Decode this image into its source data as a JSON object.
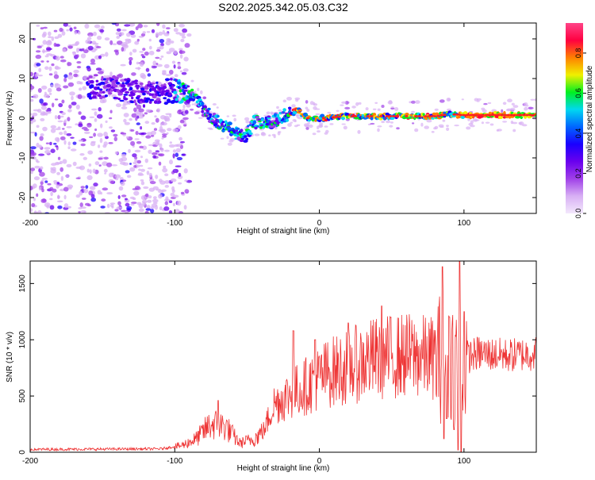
{
  "title": "S202.2025.342.05.03.C32",
  "colors": {
    "snr_line": "#ee3333",
    "axis": "#000000",
    "background": "#ffffff"
  },
  "chart_data": [
    {
      "type": "heatmap",
      "xlabel": "Height of straight line (km)",
      "ylabel": "Frequency (Hz)",
      "xlim": [
        -200,
        150
      ],
      "ylim": [
        -24,
        24
      ],
      "xticks": [
        -200,
        -100,
        0,
        100
      ],
      "xtick_labels": [
        "-200",
        "-100",
        "0",
        "100"
      ],
      "yticks": [
        -20,
        -10,
        0,
        10,
        20
      ],
      "ytick_labels": [
        "-20",
        "-10",
        "0",
        "10",
        "20"
      ],
      "colorbar": {
        "label": "Normalized spectral amplitude",
        "range": [
          0,
          0.95
        ],
        "ticks": [
          0.0,
          0.2,
          0.4,
          0.6,
          0.8
        ],
        "tick_labels": [
          "0.0",
          "0.2",
          "0.4",
          "0.6",
          "0.8"
        ],
        "stops": [
          "#f3e8fc",
          "#d8b0f4",
          "#a040e8",
          "#6a00ee",
          "#1a00ff",
          "#0066ff",
          "#00d8f0",
          "#00f020",
          "#f0f000",
          "#ff8000",
          "#ff0040",
          "#ff4488"
        ]
      },
      "ridge": [
        {
          "x": -150,
          "y": 8
        },
        {
          "x": -120,
          "y": 6
        },
        {
          "x": -100,
          "y": 7
        },
        {
          "x": -88,
          "y": 6
        },
        {
          "x": -80,
          "y": 2
        },
        {
          "x": -70,
          "y": -1
        },
        {
          "x": -60,
          "y": -3
        },
        {
          "x": -52,
          "y": -5
        },
        {
          "x": -45,
          "y": -1
        },
        {
          "x": -40,
          "y": -1
        },
        {
          "x": -32,
          "y": -1
        },
        {
          "x": -25,
          "y": 0.5
        },
        {
          "x": -15,
          "y": 2
        },
        {
          "x": -8,
          "y": 0
        },
        {
          "x": 0,
          "y": 0
        },
        {
          "x": 20,
          "y": 0.5
        },
        {
          "x": 50,
          "y": 0.5
        },
        {
          "x": 80,
          "y": 0.5
        },
        {
          "x": 90,
          "y": 1
        },
        {
          "x": 100,
          "y": 0.8
        },
        {
          "x": 150,
          "y": 0.8
        }
      ]
    },
    {
      "type": "line",
      "xlabel": "Height of straight line (km)",
      "ylabel": "SNR (10 * v/v)",
      "xlim": [
        -200,
        150
      ],
      "ylim": [
        0,
        1700
      ],
      "xticks": [
        -200,
        -100,
        0,
        100
      ],
      "xtick_labels": [
        "-200",
        "-100",
        "0",
        "100"
      ],
      "yticks": [
        0,
        500,
        1000,
        1500
      ],
      "ytick_labels": [
        "0",
        "500",
        "1000",
        "1500"
      ],
      "series": [
        {
          "name": "SNR",
          "envelope": [
            {
              "x": -200,
              "y": 25
            },
            {
              "x": -110,
              "y": 30
            },
            {
              "x": -95,
              "y": 60
            },
            {
              "x": -85,
              "y": 120
            },
            {
              "x": -75,
              "y": 250
            },
            {
              "x": -65,
              "y": 230
            },
            {
              "x": -55,
              "y": 80
            },
            {
              "x": -45,
              "y": 120
            },
            {
              "x": -38,
              "y": 200
            },
            {
              "x": -32,
              "y": 420
            },
            {
              "x": -25,
              "y": 480
            },
            {
              "x": -15,
              "y": 550
            },
            {
              "x": -5,
              "y": 620
            },
            {
              "x": 5,
              "y": 700
            },
            {
              "x": 20,
              "y": 760
            },
            {
              "x": 40,
              "y": 840
            },
            {
              "x": 60,
              "y": 860
            },
            {
              "x": 80,
              "y": 840
            },
            {
              "x": 95,
              "y": 820
            },
            {
              "x": 110,
              "y": 880
            },
            {
              "x": 130,
              "y": 860
            },
            {
              "x": 150,
              "y": 880
            }
          ],
          "peaks": [
            {
              "x": 85,
              "y": 1650
            },
            {
              "x": 97,
              "y": 1700
            },
            {
              "x": 90,
              "y": 1200
            },
            {
              "x": 100,
              "y": 1250
            },
            {
              "x": 20,
              "y": 1150
            },
            {
              "x": 43,
              "y": 1300
            },
            {
              "x": -18,
              "y": 1080
            },
            {
              "x": -70,
              "y": 460
            },
            {
              "x": -3,
              "y": 1000
            }
          ],
          "dips": [
            {
              "x": 86,
              "y": 120
            },
            {
              "x": 93,
              "y": 200
            },
            {
              "x": 96,
              "y": 20
            },
            {
              "x": 98,
              "y": 0
            },
            {
              "x": 88,
              "y": 300
            }
          ]
        }
      ]
    }
  ]
}
